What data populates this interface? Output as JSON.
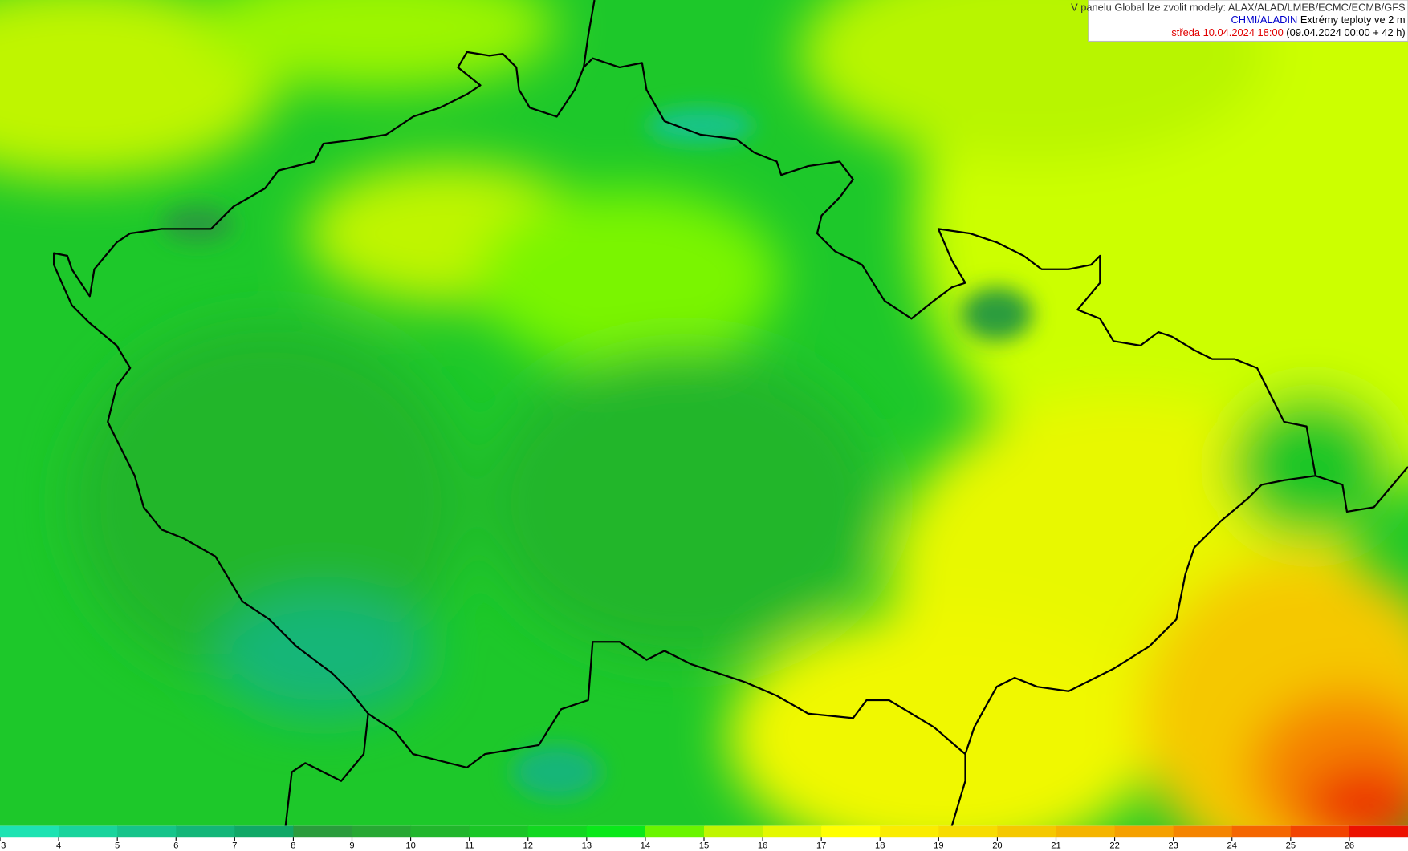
{
  "header": {
    "line1": "V panelu Global lze zvolit modely: ALAX/ALAD/LMEB/ECMC/ECMB/GFS",
    "source": "CHMI/ALADIN",
    "product": "Extrémy teploty ve 2 m",
    "valid": "středa 10.04.2024 18:00",
    "run": "(09.04.2024 00:00 + 42 h)"
  },
  "colorbar": {
    "ticks": [
      3,
      4,
      5,
      6,
      7,
      8,
      9,
      10,
      11,
      12,
      13,
      14,
      15,
      16,
      17,
      18,
      19,
      20,
      21,
      22,
      23,
      24,
      25,
      26
    ],
    "colors": [
      "#1de3b2",
      "#19d49c",
      "#16c48a",
      "#13b678",
      "#10a866",
      "#2a9c3c",
      "#27a833",
      "#21b62c",
      "#1ac626",
      "#12d720",
      "#0ae81a",
      "#6af500",
      "#bff500",
      "#e4f800",
      "#ffff00",
      "#faec00",
      "#f7dc00",
      "#f5c800",
      "#f5b400",
      "#f5a000",
      "#f58400",
      "#f56600",
      "#f24400",
      "#ec1200"
    ]
  }
}
